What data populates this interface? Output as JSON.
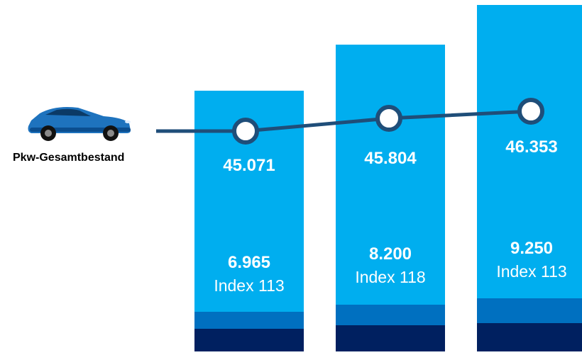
{
  "chart_data": {
    "type": "bar",
    "categories": [
      "",
      "",
      ""
    ],
    "series": [
      {
        "values": [
          45071,
          45804,
          46353
        ],
        "color": "#00AEEF"
      }
    ],
    "segment_colors": [
      "#00AEEF",
      "#0070C0",
      "#002060"
    ],
    "total_labels": [
      "45.071",
      "45.804",
      "46.353"
    ],
    "sub_values": [
      "6.965",
      "8.200",
      "9.250"
    ],
    "index_labels": [
      "Index 113",
      "Index 118",
      "Index 113"
    ],
    "line_color": "#1F4E79",
    "legend": {
      "car_label": "Pkw-Gesamtbestand",
      "icon": "car-icon"
    },
    "title": "",
    "xlabel": "",
    "ylabel": ""
  }
}
